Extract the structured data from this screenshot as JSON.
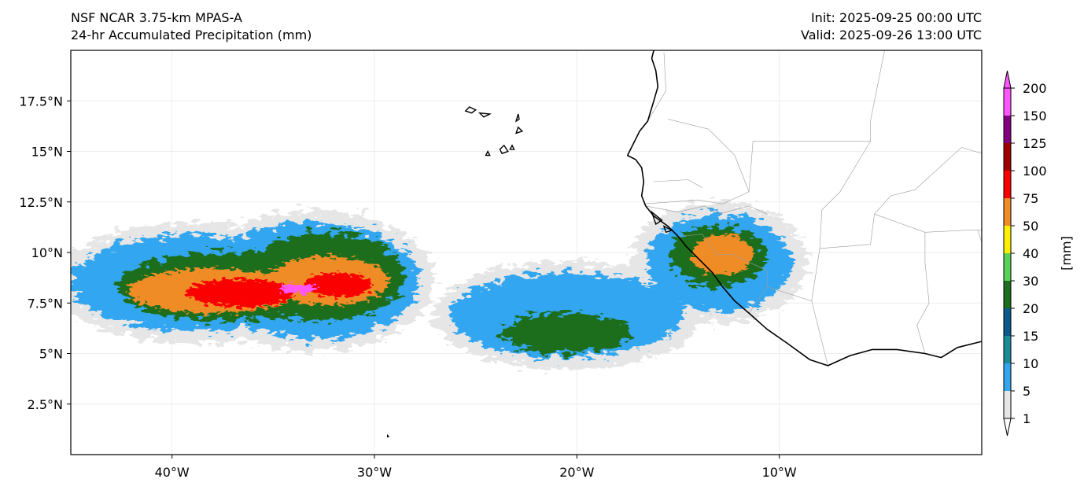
{
  "title": {
    "model": "NSF NCAR 3.75-km MPAS-A",
    "field": "24-hr Accumulated Precipitation (mm)",
    "init": "Init: 2025-09-25 00:00 UTC",
    "valid": "Valid: 2025-09-26 13:00 UTC"
  },
  "map": {
    "extent": {
      "lon": [
        -45,
        0
      ],
      "lat": [
        0,
        20
      ]
    },
    "lon_ticks": [
      {
        "value": -40,
        "label": "40°W"
      },
      {
        "value": -30,
        "label": "30°W"
      },
      {
        "value": -20,
        "label": "20°W"
      },
      {
        "value": -10,
        "label": "10°W"
      }
    ],
    "lat_ticks": [
      {
        "value": 2.5,
        "label": "2.5°N"
      },
      {
        "value": 5,
        "label": "5°N"
      },
      {
        "value": 7.5,
        "label": "7.5°N"
      },
      {
        "value": 10,
        "label": "10°N"
      },
      {
        "value": 12.5,
        "label": "12.5°N"
      },
      {
        "value": 15,
        "label": "15°N"
      },
      {
        "value": 17.5,
        "label": "17.5°N"
      }
    ],
    "coastline": [
      [
        -16.2,
        20.0
      ],
      [
        -16.3,
        19.6
      ],
      [
        -16.1,
        19.0
      ],
      [
        -16.0,
        18.2
      ],
      [
        -16.2,
        17.5
      ],
      [
        -16.5,
        16.5
      ],
      [
        -16.9,
        16.0
      ],
      [
        -17.5,
        14.8
      ],
      [
        -17.1,
        14.6
      ],
      [
        -16.8,
        14.2
      ],
      [
        -16.7,
        13.5
      ],
      [
        -16.8,
        12.8
      ],
      [
        -16.6,
        12.3
      ],
      [
        -16.2,
        11.8
      ],
      [
        -15.5,
        11.3
      ],
      [
        -15.0,
        10.8
      ],
      [
        -14.6,
        10.3
      ],
      [
        -14.0,
        9.7
      ],
      [
        -13.3,
        9.0
      ],
      [
        -12.8,
        8.3
      ],
      [
        -12.2,
        7.6
      ],
      [
        -11.5,
        7.0
      ],
      [
        -10.6,
        6.2
      ],
      [
        -9.6,
        5.5
      ],
      [
        -8.5,
        4.7
      ],
      [
        -7.6,
        4.4
      ],
      [
        -6.5,
        4.9
      ],
      [
        -5.4,
        5.2
      ],
      [
        -4.2,
        5.2
      ],
      [
        -2.8,
        5.0
      ],
      [
        -2.0,
        4.8
      ],
      [
        -1.2,
        5.3
      ],
      [
        0.0,
        5.6
      ]
    ],
    "borders": [
      [
        [
          -15.7,
          19.9
        ],
        [
          -15.6,
          18.0
        ],
        [
          -16.5,
          16.5
        ]
      ],
      [
        [
          -15.5,
          16.6
        ],
        [
          -13.5,
          16.1
        ],
        [
          -12.2,
          14.8
        ],
        [
          -11.5,
          13.0
        ],
        [
          -12.8,
          12.4
        ],
        [
          -14.0,
          12.6
        ],
        [
          -16.7,
          12.4
        ]
      ],
      [
        [
          -16.2,
          13.5
        ],
        [
          -14.5,
          13.6
        ],
        [
          -13.8,
          13.2
        ]
      ],
      [
        [
          -16.6,
          12.3
        ],
        [
          -15.0,
          12.0
        ],
        [
          -13.7,
          12.3
        ],
        [
          -13.0,
          11.9
        ],
        [
          -11.5,
          12.3
        ],
        [
          -10.6,
          11.9
        ]
      ],
      [
        [
          -15.0,
          10.8
        ],
        [
          -13.8,
          10.9
        ],
        [
          -13.1,
          9.9
        ],
        [
          -12.3,
          9.9
        ],
        [
          -10.6,
          9.1
        ],
        [
          -10.6,
          8.3
        ],
        [
          -11.5,
          7.0
        ]
      ],
      [
        [
          -10.6,
          8.3
        ],
        [
          -8.4,
          7.6
        ],
        [
          -7.6,
          4.4
        ]
      ],
      [
        [
          -8.4,
          7.6
        ],
        [
          -8.0,
          10.2
        ],
        [
          -5.5,
          10.4
        ],
        [
          -5.3,
          11.9
        ]
      ],
      [
        [
          -11.5,
          13.0
        ],
        [
          -11.3,
          15.5
        ],
        [
          -5.5,
          15.5
        ],
        [
          -5.5,
          16.5
        ],
        [
          -4.8,
          20.0
        ]
      ],
      [
        [
          -5.3,
          11.9
        ],
        [
          -2.8,
          11.0
        ],
        [
          -0.7,
          11.1
        ],
        [
          0.0,
          11.1
        ]
      ],
      [
        [
          -2.8,
          11.0
        ],
        [
          -2.8,
          9.5
        ],
        [
          -2.6,
          7.5
        ],
        [
          -3.2,
          6.4
        ],
        [
          -2.8,
          5.0
        ]
      ],
      [
        [
          -0.2,
          11.1
        ],
        [
          0.0,
          10.5
        ]
      ],
      [
        [
          -8.0,
          10.2
        ],
        [
          -7.9,
          12.1
        ],
        [
          -7.0,
          13.0
        ],
        [
          -5.5,
          15.5
        ]
      ],
      [
        [
          -5.3,
          11.9
        ],
        [
          -4.5,
          12.8
        ],
        [
          -3.3,
          13.1
        ],
        [
          -1.0,
          15.2
        ],
        [
          0.0,
          14.9
        ]
      ]
    ],
    "islands": [
      [
        [
          -25.3,
          17.2
        ],
        [
          -25.0,
          17.05
        ],
        [
          -25.2,
          16.9
        ],
        [
          -25.5,
          17.0
        ],
        [
          -25.3,
          17.2
        ]
      ],
      [
        [
          -24.8,
          16.9
        ],
        [
          -24.3,
          16.85
        ],
        [
          -24.6,
          16.7
        ],
        [
          -24.8,
          16.9
        ]
      ],
      [
        [
          -22.9,
          16.85
        ],
        [
          -22.85,
          16.6
        ],
        [
          -23.0,
          16.5
        ],
        [
          -22.9,
          16.85
        ]
      ],
      [
        [
          -22.9,
          16.2
        ],
        [
          -22.7,
          16.0
        ],
        [
          -23.0,
          15.9
        ],
        [
          -22.9,
          16.2
        ]
      ],
      [
        [
          -24.4,
          15.0
        ],
        [
          -24.3,
          14.8
        ],
        [
          -24.5,
          14.8
        ],
        [
          -24.4,
          15.0
        ]
      ],
      [
        [
          -23.2,
          15.3
        ],
        [
          -23.1,
          15.1
        ],
        [
          -23.3,
          15.1
        ],
        [
          -23.2,
          15.3
        ]
      ],
      [
        [
          -23.6,
          15.3
        ],
        [
          -23.4,
          15.0
        ],
        [
          -23.7,
          14.9
        ],
        [
          -23.8,
          15.1
        ],
        [
          -23.6,
          15.3
        ]
      ],
      [
        [
          -16.3,
          12.0
        ],
        [
          -15.8,
          11.6
        ],
        [
          -16.1,
          11.4
        ],
        [
          -16.3,
          12.0
        ]
      ],
      [
        [
          -15.7,
          11.3
        ],
        [
          -15.3,
          11.1
        ],
        [
          -15.6,
          11.0
        ],
        [
          -15.7,
          11.3
        ]
      ],
      [
        [
          -29.35,
          0.95
        ],
        [
          -29.3,
          0.9
        ],
        [
          -29.35,
          0.88
        ],
        [
          -29.35,
          0.95
        ]
      ]
    ],
    "rain_bands": [
      {
        "lon": -38.8,
        "lat": 8.5,
        "rx": 6.2,
        "ry": 2.4,
        "mm": 5
      },
      {
        "lon": -33.0,
        "lat": 8.6,
        "rx": 5.2,
        "ry": 2.9,
        "mm": 5
      },
      {
        "lon": -20.5,
        "lat": 6.9,
        "rx": 5.8,
        "ry": 2.1,
        "mm": 5
      },
      {
        "lon": -13.0,
        "lat": 9.5,
        "rx": 3.6,
        "ry": 2.4,
        "mm": 5
      },
      {
        "lon": -37.5,
        "lat": 8.3,
        "rx": 5.2,
        "ry": 1.7,
        "mm": 20
      },
      {
        "lon": -32.5,
        "lat": 8.8,
        "rx": 4.0,
        "ry": 2.2,
        "mm": 20
      },
      {
        "lon": -20.5,
        "lat": 6.0,
        "rx": 3.2,
        "ry": 1.0,
        "mm": 20
      },
      {
        "lon": -13.0,
        "lat": 9.8,
        "rx": 2.4,
        "ry": 1.5,
        "mm": 20
      },
      {
        "lon": -38.0,
        "lat": 8.1,
        "rx": 4.2,
        "ry": 1.1,
        "mm": 50
      },
      {
        "lon": -32.3,
        "lat": 8.6,
        "rx": 3.0,
        "ry": 1.2,
        "mm": 50
      },
      {
        "lon": -12.8,
        "lat": 9.9,
        "rx": 1.5,
        "ry": 1.0,
        "mm": 50
      },
      {
        "lon": -36.6,
        "lat": 8.0,
        "rx": 2.7,
        "ry": 0.7,
        "mm": 75
      },
      {
        "lon": -31.8,
        "lat": 8.4,
        "rx": 1.7,
        "ry": 0.6,
        "mm": 75
      },
      {
        "lon": -33.8,
        "lat": 8.2,
        "rx": 0.9,
        "ry": 0.25,
        "mm": 200
      }
    ]
  },
  "colorbar": {
    "unit_label": "[mm]",
    "levels": [
      1,
      5,
      10,
      15,
      20,
      30,
      40,
      50,
      75,
      100,
      125,
      150,
      200
    ],
    "colors": [
      "#e6e6e6",
      "#33a6f0",
      "#1a8c99",
      "#0a5a8c",
      "#1e6e1e",
      "#5ad25a",
      "#fff000",
      "#f08c28",
      "#fa0000",
      "#a00000",
      "#800080",
      "#ff55ff"
    ]
  }
}
